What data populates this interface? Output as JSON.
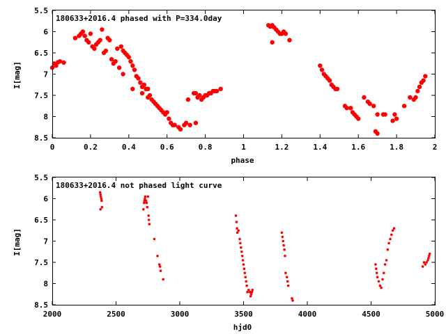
{
  "chart_data": [
    {
      "type": "scatter",
      "title": "180633+2016.4 phased with P=334.0day",
      "xlabel": "phase",
      "ylabel": "I[mag]",
      "xlim": [
        0,
        2
      ],
      "ylim": [
        8.5,
        5.5
      ],
      "y_inverted": true,
      "grid": false,
      "legend": "none",
      "marker": "filled-circle-large",
      "color": "#ff0000",
      "xticks": [
        "0",
        "0.2",
        "0.4",
        "0.6",
        "0.8",
        "1",
        "1.2",
        "1.4",
        "1.6",
        "1.8",
        "2"
      ],
      "yticks": [
        "5.5",
        "6",
        "6.5",
        "7",
        "7.5",
        "8",
        "8.5"
      ],
      "series": [
        {
          "points": [
            [
              0.0,
              6.85
            ],
            [
              0.01,
              6.75
            ],
            [
              0.02,
              6.8
            ],
            [
              0.03,
              6.72
            ],
            [
              0.04,
              6.7
            ],
            [
              0.06,
              6.73
            ],
            [
              0.12,
              6.15
            ],
            [
              0.14,
              6.1
            ],
            [
              0.15,
              6.05
            ],
            [
              0.16,
              6.0
            ],
            [
              0.17,
              6.1
            ],
            [
              0.18,
              6.2
            ],
            [
              0.19,
              6.25
            ],
            [
              0.2,
              6.05
            ],
            [
              0.21,
              6.35
            ],
            [
              0.22,
              6.4
            ],
            [
              0.23,
              6.3
            ],
            [
              0.24,
              6.25
            ],
            [
              0.25,
              6.2
            ],
            [
              0.26,
              5.95
            ],
            [
              0.27,
              6.5
            ],
            [
              0.28,
              6.45
            ],
            [
              0.29,
              6.15
            ],
            [
              0.3,
              6.2
            ],
            [
              0.31,
              6.65
            ],
            [
              0.32,
              6.75
            ],
            [
              0.33,
              6.7
            ],
            [
              0.34,
              6.4
            ],
            [
              0.35,
              6.85
            ],
            [
              0.36,
              6.35
            ],
            [
              0.37,
              6.45
            ],
            [
              0.38,
              6.5
            ],
            [
              0.37,
              7.0
            ],
            [
              0.39,
              6.55
            ],
            [
              0.4,
              6.6
            ],
            [
              0.41,
              6.7
            ],
            [
              0.42,
              6.8
            ],
            [
              0.42,
              7.35
            ],
            [
              0.43,
              6.9
            ],
            [
              0.44,
              7.05
            ],
            [
              0.45,
              7.1
            ],
            [
              0.46,
              7.2
            ],
            [
              0.47,
              7.3
            ],
            [
              0.47,
              7.45
            ],
            [
              0.48,
              7.25
            ],
            [
              0.49,
              7.35
            ],
            [
              0.5,
              7.35
            ],
            [
              0.5,
              7.55
            ],
            [
              0.51,
              7.5
            ],
            [
              0.52,
              7.6
            ],
            [
              0.53,
              7.65
            ],
            [
              0.54,
              7.7
            ],
            [
              0.55,
              7.75
            ],
            [
              0.56,
              7.8
            ],
            [
              0.57,
              7.85
            ],
            [
              0.58,
              7.9
            ],
            [
              0.59,
              7.95
            ],
            [
              0.6,
              7.9
            ],
            [
              0.61,
              8.05
            ],
            [
              0.62,
              8.15
            ],
            [
              0.63,
              8.2
            ],
            [
              0.64,
              8.2
            ],
            [
              0.66,
              8.25
            ],
            [
              0.67,
              8.3
            ],
            [
              0.69,
              8.2
            ],
            [
              0.7,
              8.15
            ],
            [
              0.72,
              8.2
            ],
            [
              0.75,
              8.15
            ],
            [
              0.71,
              7.6
            ],
            [
              0.74,
              7.45
            ],
            [
              0.75,
              7.45
            ],
            [
              0.76,
              7.55
            ],
            [
              0.77,
              7.5
            ],
            [
              0.78,
              7.6
            ],
            [
              0.79,
              7.55
            ],
            [
              0.8,
              7.5
            ],
            [
              0.81,
              7.5
            ],
            [
              0.82,
              7.45
            ],
            [
              0.83,
              7.45
            ],
            [
              0.84,
              7.4
            ],
            [
              0.85,
              7.4
            ],
            [
              0.86,
              7.4
            ],
            [
              0.88,
              7.35
            ],
            [
              1.13,
              5.85
            ],
            [
              1.14,
              5.88
            ],
            [
              1.15,
              5.85
            ],
            [
              1.16,
              5.9
            ],
            [
              1.15,
              6.25
            ],
            [
              1.17,
              5.95
            ],
            [
              1.18,
              6.0
            ],
            [
              1.19,
              6.05
            ],
            [
              1.2,
              6.05
            ],
            [
              1.21,
              6.0
            ],
            [
              1.22,
              6.05
            ],
            [
              1.24,
              6.2
            ],
            [
              1.4,
              6.8
            ],
            [
              1.41,
              6.9
            ],
            [
              1.42,
              7.0
            ],
            [
              1.43,
              7.05
            ],
            [
              1.44,
              7.1
            ],
            [
              1.45,
              7.15
            ],
            [
              1.46,
              7.25
            ],
            [
              1.47,
              7.3
            ],
            [
              1.48,
              7.35
            ],
            [
              1.49,
              7.35
            ],
            [
              1.53,
              7.75
            ],
            [
              1.54,
              7.8
            ],
            [
              1.56,
              7.8
            ],
            [
              1.57,
              7.9
            ],
            [
              1.58,
              7.95
            ],
            [
              1.59,
              8.0
            ],
            [
              1.6,
              8.05
            ],
            [
              1.63,
              7.55
            ],
            [
              1.65,
              7.65
            ],
            [
              1.66,
              7.7
            ],
            [
              1.68,
              7.75
            ],
            [
              1.7,
              7.95
            ],
            [
              1.73,
              7.95
            ],
            [
              1.74,
              7.95
            ],
            [
              1.69,
              8.35
            ],
            [
              1.7,
              8.4
            ],
            [
              1.78,
              8.1
            ],
            [
              1.8,
              8.05
            ],
            [
              1.79,
              7.95
            ],
            [
              1.84,
              7.75
            ],
            [
              1.87,
              7.55
            ],
            [
              1.89,
              7.6
            ],
            [
              1.9,
              7.55
            ],
            [
              1.91,
              7.4
            ],
            [
              1.92,
              7.3
            ],
            [
              1.93,
              7.2
            ],
            [
              1.94,
              7.15
            ],
            [
              1.95,
              7.05
            ]
          ]
        }
      ]
    },
    {
      "type": "scatter",
      "title": "180633+2016.4 not phased light curve",
      "xlabel": "hjd0",
      "ylabel": "I[mag]",
      "xlim": [
        2000,
        5000
      ],
      "ylim": [
        8.5,
        5.5
      ],
      "y_inverted": true,
      "grid": false,
      "legend": "none",
      "marker": "filled-circle-small",
      "color": "#ff0000",
      "xticks": [
        "2000",
        "2500",
        "3000",
        "3500",
        "4000",
        "4500",
        "5000"
      ],
      "yticks": [
        "5.5",
        "6",
        "6.5",
        "7",
        "7.5",
        "8",
        "8.5"
      ],
      "series": [
        {
          "points": [
            [
              2375,
              5.85
            ],
            [
              2378,
              5.9
            ],
            [
              2381,
              5.95
            ],
            [
              2384,
              6.0
            ],
            [
              2387,
              6.05
            ],
            [
              2378,
              6.25
            ],
            [
              2390,
              6.2
            ],
            [
              2715,
              6.25
            ],
            [
              2720,
              6.1
            ],
            [
              2723,
              6.05
            ],
            [
              2726,
              6.0
            ],
            [
              2729,
              5.95
            ],
            [
              2735,
              6.05
            ],
            [
              2740,
              6.1
            ],
            [
              2745,
              6.2
            ],
            [
              2750,
              5.95
            ],
            [
              2755,
              6.4
            ],
            [
              2758,
              6.5
            ],
            [
              2761,
              6.6
            ],
            [
              2800,
              6.95
            ],
            [
              2825,
              7.35
            ],
            [
              2840,
              7.55
            ],
            [
              2845,
              7.6
            ],
            [
              2850,
              7.7
            ],
            [
              2870,
              7.9
            ],
            [
              3440,
              6.4
            ],
            [
              3445,
              6.55
            ],
            [
              3448,
              6.7
            ],
            [
              3452,
              6.8
            ],
            [
              3460,
              6.75
            ],
            [
              3470,
              6.95
            ],
            [
              3475,
              7.05
            ],
            [
              3480,
              7.15
            ],
            [
              3485,
              7.25
            ],
            [
              3490,
              7.35
            ],
            [
              3495,
              7.45
            ],
            [
              3500,
              7.55
            ],
            [
              3505,
              7.65
            ],
            [
              3510,
              7.75
            ],
            [
              3515,
              7.85
            ],
            [
              3520,
              7.95
            ],
            [
              3525,
              8.05
            ],
            [
              3530,
              8.2
            ],
            [
              3540,
              8.15
            ],
            [
              3550,
              8.2
            ],
            [
              3555,
              8.3
            ],
            [
              3560,
              8.25
            ],
            [
              3565,
              8.2
            ],
            [
              3570,
              8.15
            ],
            [
              3800,
              6.8
            ],
            [
              3805,
              6.9
            ],
            [
              3810,
              7.0
            ],
            [
              3815,
              7.1
            ],
            [
              3820,
              7.2
            ],
            [
              3825,
              7.35
            ],
            [
              3830,
              7.75
            ],
            [
              3840,
              7.85
            ],
            [
              3845,
              7.95
            ],
            [
              3850,
              8.05
            ],
            [
              3880,
              8.35
            ],
            [
              3885,
              8.4
            ],
            [
              4535,
              7.55
            ],
            [
              4540,
              7.65
            ],
            [
              4545,
              7.75
            ],
            [
              4550,
              7.85
            ],
            [
              4560,
              7.95
            ],
            [
              4570,
              8.05
            ],
            [
              4580,
              8.1
            ],
            [
              4590,
              7.9
            ],
            [
              4600,
              7.75
            ],
            [
              4610,
              7.55
            ],
            [
              4620,
              7.45
            ],
            [
              4630,
              7.2
            ],
            [
              4640,
              7.05
            ],
            [
              4650,
              6.95
            ],
            [
              4660,
              6.85
            ],
            [
              4670,
              6.75
            ],
            [
              4680,
              6.7
            ],
            [
              4905,
              7.6
            ],
            [
              4915,
              7.5
            ],
            [
              4925,
              7.55
            ],
            [
              4935,
              7.5
            ],
            [
              4945,
              7.45
            ],
            [
              4950,
              7.4
            ],
            [
              4955,
              7.35
            ],
            [
              4960,
              7.3
            ]
          ]
        }
      ]
    }
  ]
}
